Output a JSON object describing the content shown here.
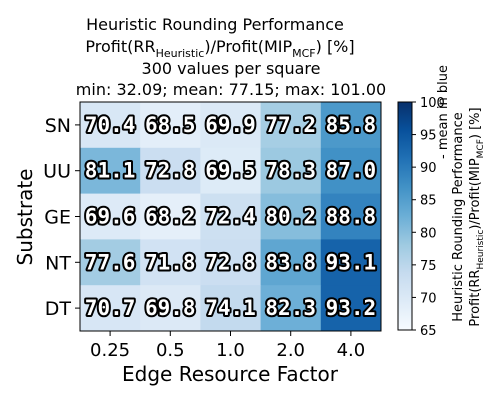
{
  "chart_data": {
    "type": "heatmap",
    "title_lines": [
      "Heuristic Rounding Performance",
      "Profit(RR_Heuristic)/Profit(MIP_MCF) [%]",
      "300 values per square",
      "min: 32.09; mean: 77.15; max: 101.00"
    ],
    "title_formula": {
      "part1": "Profit(RR",
      "sub1": "Heuristic",
      "part2": ")/Profit(MIP",
      "sub2": "MCF",
      "part3": ") [%]"
    },
    "xlabel": "Edge Resource Factor",
    "ylabel": "Substrate",
    "x_categories": [
      "0.25",
      "0.5",
      "1.0",
      "2.0",
      "4.0"
    ],
    "y_categories": [
      "SN",
      "UU",
      "GE",
      "NT",
      "DT"
    ],
    "values": [
      [
        70.4,
        68.5,
        69.9,
        77.2,
        85.8
      ],
      [
        81.1,
        72.8,
        69.5,
        78.3,
        87.0
      ],
      [
        69.6,
        68.2,
        72.4,
        80.2,
        88.8
      ],
      [
        77.6,
        71.8,
        72.8,
        83.8,
        93.1
      ],
      [
        70.7,
        69.8,
        74.1,
        82.3,
        93.2
      ]
    ],
    "colorbar": {
      "range": [
        65,
        100
      ],
      "ticks": [
        65,
        70,
        75,
        80,
        85,
        90,
        95,
        100
      ],
      "colormap": "Blues",
      "label_line1": "Heuristic Rounding Performance",
      "label_line1_suffix": "- mean in blue",
      "label_line2": {
        "part1": "Profit(RR",
        "sub1": "Heuristic",
        "part2": ")/Profit(MIP",
        "sub2": "MCF",
        "part3": ") [%]"
      }
    }
  }
}
